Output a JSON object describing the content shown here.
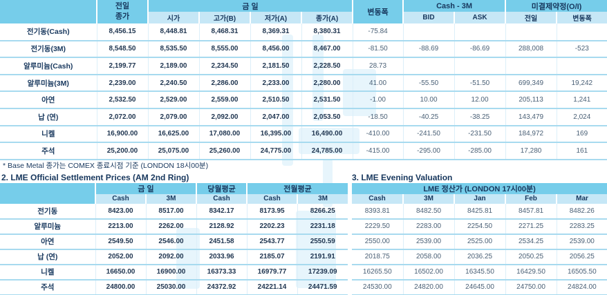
{
  "colors": {
    "header_blue": "#76CDEA",
    "subheader_blue": "#C6E7F6",
    "row_line": "#A7DAEF",
    "text_dark": "#17375D",
    "value_bold": "#1F3550",
    "value_regular": "#4A6076",
    "watermark": "#C9E9F8"
  },
  "note": "* Base Metal 종가는 COMEX 종료시점 기준 (LONDON 18시00분)",
  "section2_title": "2. LME Official Settlement Prices (AM 2nd Ring)",
  "section3_title": "3. LME Evening Valuation",
  "table1": {
    "header": {
      "prev_line1": "전일",
      "prev_line2": "종가",
      "today": "금         일",
      "open": "시가",
      "high": "고가(B)",
      "low": "저가(A)",
      "close": "종가(A)",
      "change": "변동폭",
      "cash_3m": "Cash - 3M",
      "bid": "BID",
      "ask": "ASK",
      "open_interest": "미결제약정(O/I)",
      "oi_prev": "전일",
      "oi_change": "변동폭"
    },
    "rows": [
      [
        "전기동(Cash)",
        "8,456.15",
        "8,448.81",
        "8,468.31",
        "8,369.31",
        "8,380.31",
        "-75.84",
        "",
        "",
        "",
        ""
      ],
      [
        "전기동(3M)",
        "8,548.50",
        "8,535.50",
        "8,555.00",
        "8,456.00",
        "8,467.00",
        "-81.50",
        "-88.69",
        "-86.69",
        "288,008",
        "-523"
      ],
      [
        "알루미늄(Cash)",
        "2,199.77",
        "2,189.00",
        "2,234.50",
        "2,181.50",
        "2,228.50",
        "28.73",
        "",
        "",
        "",
        ""
      ],
      [
        "알루미늄(3M)",
        "2,239.00",
        "2,240.50",
        "2,286.00",
        "2,233.00",
        "2,280.00",
        "41.00",
        "-55.50",
        "-51.50",
        "699,349",
        "19,242"
      ],
      [
        "아연",
        "2,532.50",
        "2,529.00",
        "2,559.00",
        "2,510.50",
        "2,531.50",
        "-1.00",
        "10.00",
        "12.00",
        "205,113",
        "1,241"
      ],
      [
        "납 (연)",
        "2,072.00",
        "2,079.00",
        "2,092.00",
        "2,047.00",
        "2,053.50",
        "-18.50",
        "-40.25",
        "-38.25",
        "143,479",
        "2,024"
      ],
      [
        "니켈",
        "16,900.00",
        "16,625.00",
        "17,080.00",
        "16,395.00",
        "16,490.00",
        "-410.00",
        "-241.50",
        "-231.50",
        "184,972",
        "169"
      ],
      [
        "주석",
        "25,200.00",
        "25,075.00",
        "25,260.00",
        "24,775.00",
        "24,785.00",
        "-415.00",
        "-295.00",
        "-285.00",
        "17,280",
        "161"
      ]
    ]
  },
  "table2": {
    "header": {
      "today": "금    일",
      "month_avg": "당월평균",
      "prev_month_avg": "전월평균",
      "cols": [
        "Cash",
        "3M",
        "Cash",
        "Cash",
        "3M"
      ]
    },
    "rows": [
      [
        "전기동",
        "8423.00",
        "8517.00",
        "8342.17",
        "8173.95",
        "8266.25"
      ],
      [
        "알루미늄",
        "2213.00",
        "2262.00",
        "2128.92",
        "2202.23",
        "2231.18"
      ],
      [
        "아연",
        "2549.50",
        "2546.00",
        "2451.58",
        "2543.77",
        "2550.59"
      ],
      [
        "납 (연)",
        "2052.00",
        "2092.00",
        "2033.96",
        "2185.07",
        "2191.91"
      ],
      [
        "니켈",
        "16650.00",
        "16900.00",
        "16373.33",
        "16979.77",
        "17239.09"
      ],
      [
        "주석",
        "24800.00",
        "25030.00",
        "24372.92",
        "24221.14",
        "24471.59"
      ]
    ]
  },
  "table3": {
    "header": {
      "title": "LME 정산가 (LONDON 17시00분)",
      "cols": [
        "Cash",
        "3M",
        "Jan",
        "Feb",
        "Mar"
      ]
    },
    "rows": [
      [
        "8393.81",
        "8482.50",
        "8425.81",
        "8457.81",
        "8482.26"
      ],
      [
        "2229.50",
        "2283.00",
        "2254.50",
        "2271.25",
        "2283.25"
      ],
      [
        "2550.00",
        "2539.00",
        "2525.00",
        "2534.25",
        "2539.00"
      ],
      [
        "2018.75",
        "2058.00",
        "2036.25",
        "2050.25",
        "2056.25"
      ],
      [
        "16265.50",
        "16502.00",
        "16345.50",
        "16429.50",
        "16505.50"
      ],
      [
        "24530.00",
        "24820.00",
        "24645.00",
        "24750.00",
        "24824.00"
      ]
    ]
  }
}
